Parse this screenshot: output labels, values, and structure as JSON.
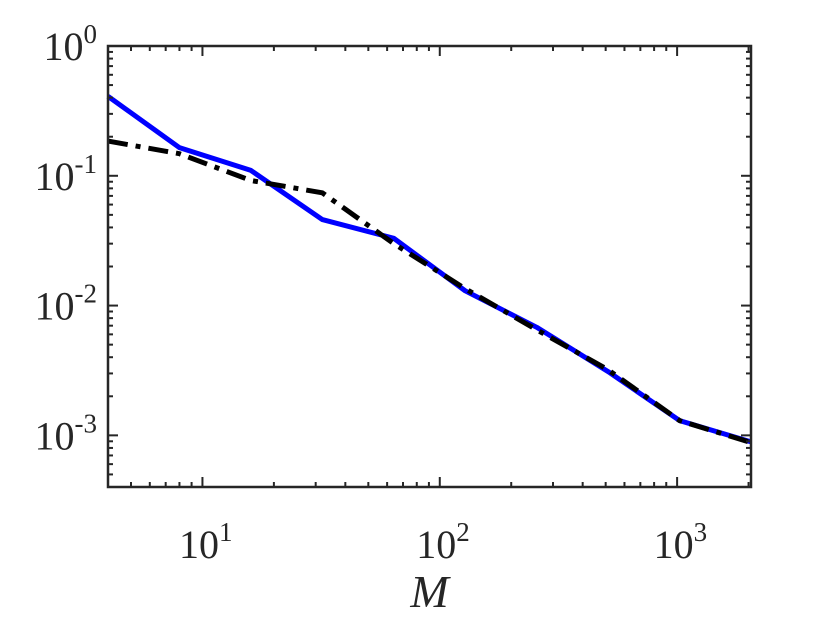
{
  "chart_data": {
    "type": "line",
    "title": "",
    "xlabel": "M",
    "ylabel": "",
    "xscale": "log",
    "yscale": "log",
    "xlim": [
      4,
      2048
    ],
    "ylim": [
      0.0004,
      1
    ],
    "grid": false,
    "box": true,
    "x_ticks": [
      {
        "value": 10,
        "base": "10",
        "exp": "1"
      },
      {
        "value": 100,
        "base": "10",
        "exp": "2"
      },
      {
        "value": 1000,
        "base": "10",
        "exp": "3"
      }
    ],
    "y_ticks": [
      {
        "value": 1,
        "base": "10",
        "exp": "0"
      },
      {
        "value": 0.1,
        "base": "10",
        "exp": "-1"
      },
      {
        "value": 0.01,
        "base": "10",
        "exp": "-2"
      },
      {
        "value": 0.001,
        "base": "10",
        "exp": "-3"
      }
    ],
    "series": [
      {
        "color": "#0000ff",
        "style": "solid",
        "x": [
          4,
          8,
          16,
          32,
          64,
          128,
          256,
          512,
          1024,
          2048
        ],
        "y": [
          0.41,
          0.165,
          0.11,
          0.046,
          0.033,
          0.013,
          0.0068,
          0.0031,
          0.0013,
          0.00089
        ]
      },
      {
        "color": "#000000",
        "style": "dashdot",
        "x": [
          4,
          8,
          16,
          32,
          64,
          128,
          256,
          512,
          1024,
          2048
        ],
        "y": [
          0.185,
          0.148,
          0.092,
          0.074,
          0.03,
          0.0135,
          0.0065,
          0.0032,
          0.0013,
          0.00088
        ]
      }
    ]
  }
}
